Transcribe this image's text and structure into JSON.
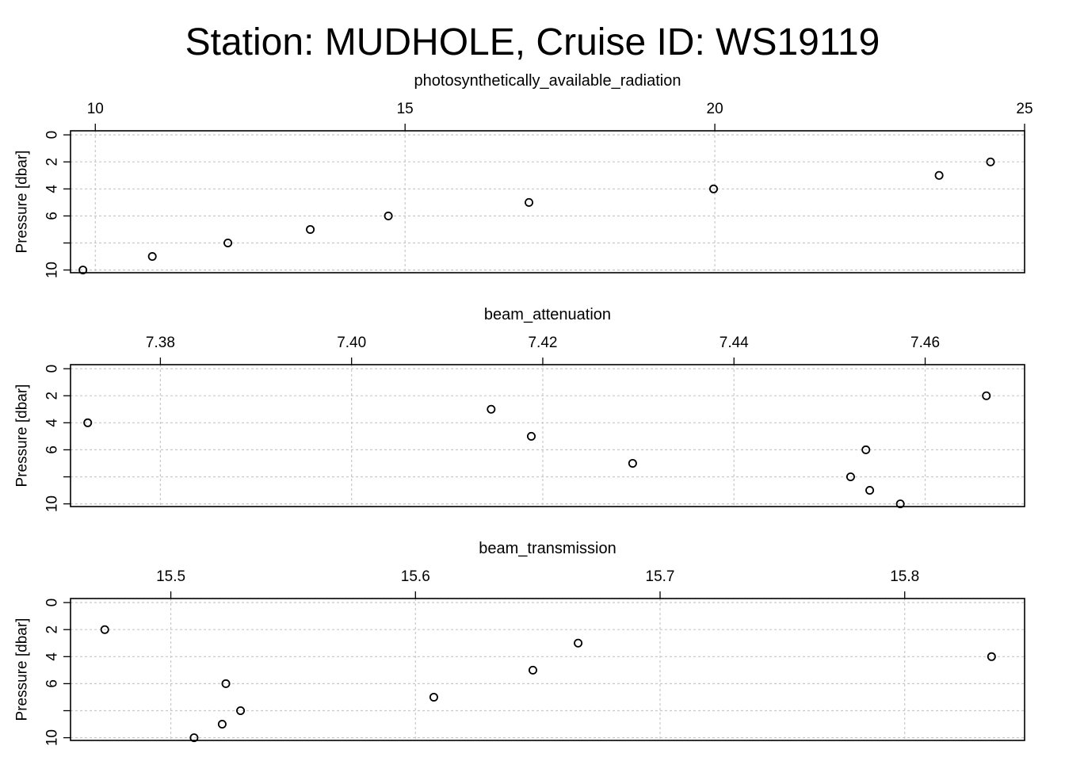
{
  "chart_data": {
    "type": "scatter",
    "title": "Station: MUDHOLE, Cruise ID: WS19119",
    "ylabel": "Pressure [dbar]",
    "y_axis_reversed": true,
    "x_axis_position": "top",
    "grid": true,
    "marker": "open-circle",
    "panels": [
      {
        "title": "photosynthetically_available_radiation",
        "xlim": [
          9.6,
          25
        ],
        "ylim": [
          10.2,
          -0.3
        ],
        "x_ticks": [
          10,
          15,
          20,
          25
        ],
        "x_tick_labels": [
          "10",
          "15",
          "20",
          "25"
        ],
        "y_ticks": [
          0,
          2,
          4,
          6,
          8,
          10
        ],
        "y_tick_labels": [
          "0",
          "2",
          "4",
          "6",
          "",
          "10"
        ],
        "points": [
          {
            "x": 24.45,
            "y": 2
          },
          {
            "x": 23.62,
            "y": 3
          },
          {
            "x": 19.98,
            "y": 4
          },
          {
            "x": 17.0,
            "y": 5
          },
          {
            "x": 14.73,
            "y": 6
          },
          {
            "x": 13.47,
            "y": 7
          },
          {
            "x": 12.14,
            "y": 8
          },
          {
            "x": 10.92,
            "y": 9
          },
          {
            "x": 9.8,
            "y": 10
          }
        ]
      },
      {
        "title": "beam_attenuation",
        "xlim": [
          7.3706,
          7.4704
        ],
        "ylim": [
          10.2,
          -0.3
        ],
        "x_ticks": [
          7.38,
          7.4,
          7.42,
          7.44,
          7.46
        ],
        "x_tick_labels": [
          "7.38",
          "7.40",
          "7.42",
          "7.44",
          "7.46"
        ],
        "y_ticks": [
          0,
          2,
          4,
          6,
          8,
          10
        ],
        "y_tick_labels": [
          "0",
          "2",
          "4",
          "6",
          "",
          "10"
        ],
        "points": [
          {
            "x": 7.4664,
            "y": 2
          },
          {
            "x": 7.4146,
            "y": 3
          },
          {
            "x": 7.3724,
            "y": 4
          },
          {
            "x": 7.4188,
            "y": 5
          },
          {
            "x": 7.4538,
            "y": 6
          },
          {
            "x": 7.4294,
            "y": 7
          },
          {
            "x": 7.4522,
            "y": 8
          },
          {
            "x": 7.4542,
            "y": 9
          },
          {
            "x": 7.4574,
            "y": 10
          }
        ]
      },
      {
        "title": "beam_transmission",
        "xlim": [
          15.459,
          15.849
        ],
        "ylim": [
          10.2,
          -0.3
        ],
        "x_ticks": [
          15.5,
          15.6,
          15.7,
          15.8
        ],
        "x_tick_labels": [
          "15.5",
          "15.6",
          "15.7",
          "15.8"
        ],
        "y_ticks": [
          0,
          2,
          4,
          6,
          8,
          10
        ],
        "y_tick_labels": [
          "0",
          "2",
          "4",
          "6",
          "",
          "10"
        ],
        "points": [
          {
            "x": 15.473,
            "y": 2
          },
          {
            "x": 15.6665,
            "y": 3
          },
          {
            "x": 15.8355,
            "y": 4
          },
          {
            "x": 15.648,
            "y": 5
          },
          {
            "x": 15.5225,
            "y": 6
          },
          {
            "x": 15.6075,
            "y": 7
          },
          {
            "x": 15.5285,
            "y": 8
          },
          {
            "x": 15.521,
            "y": 9
          },
          {
            "x": 15.5095,
            "y": 10
          }
        ]
      }
    ]
  }
}
